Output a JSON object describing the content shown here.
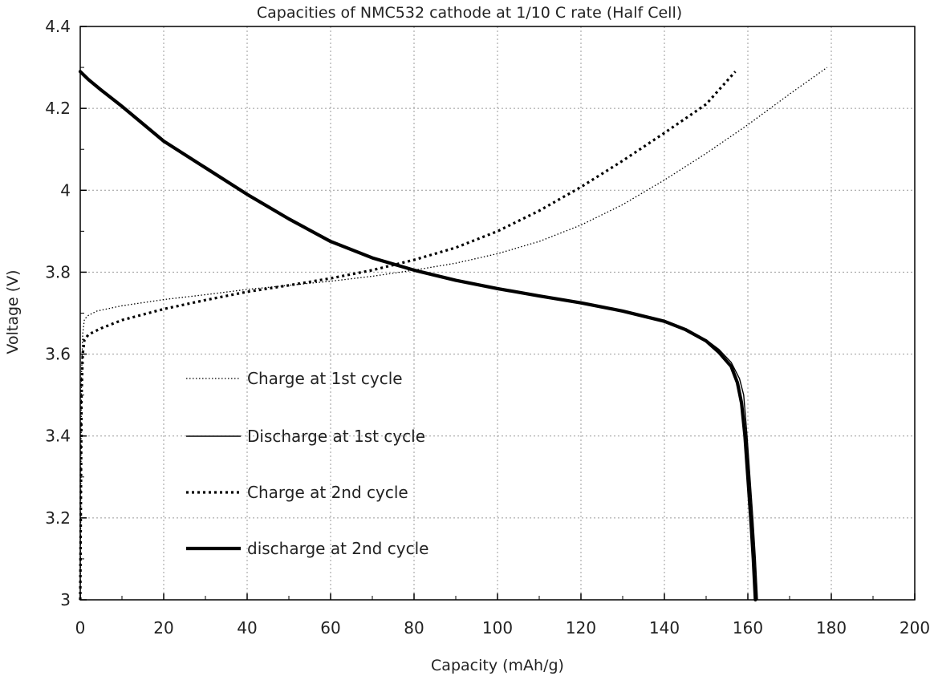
{
  "chart_data": {
    "type": "line",
    "title": "Capacities of NMC532 cathode at 1/10 C rate (Half Cell)",
    "xlabel": "Capacity (mAh/g)",
    "ylabel": "Voltage (V)",
    "xlim": [
      0,
      200
    ],
    "ylim": [
      3,
      4.4
    ],
    "x_ticks": [
      0,
      20,
      40,
      60,
      80,
      100,
      120,
      140,
      160,
      180,
      200
    ],
    "x_tick_labels": [
      "0",
      "20",
      "40",
      "60",
      "80",
      "100",
      "120",
      "140",
      "160",
      "180",
      "200"
    ],
    "y_ticks": [
      3,
      3.2,
      3.4,
      3.6,
      3.8,
      4,
      4.2,
      4.4
    ],
    "y_tick_labels": [
      "3",
      "3.2",
      "3.4",
      "3.6",
      "3.8",
      "4",
      "4.2",
      "4.4"
    ],
    "grid": true,
    "legend_position": "center-left",
    "series": [
      {
        "name": "Charge at 1st cycle",
        "style": "dotted-thin",
        "color": "#000000",
        "x": [
          0,
          0.3,
          0.6,
          1,
          2,
          4,
          10,
          20,
          30,
          40,
          50,
          60,
          70,
          80,
          90,
          100,
          110,
          120,
          130,
          140,
          150,
          160,
          170,
          179
        ],
        "y": [
          3.0,
          3.55,
          3.65,
          3.685,
          3.695,
          3.705,
          3.718,
          3.733,
          3.745,
          3.758,
          3.768,
          3.778,
          3.79,
          3.805,
          3.822,
          3.845,
          3.875,
          3.915,
          3.965,
          4.025,
          4.09,
          4.16,
          4.235,
          4.3
        ]
      },
      {
        "name": "Discharge at 1st cycle",
        "style": "solid-thin",
        "color": "#000000",
        "x": [
          0,
          2,
          5,
          10,
          20,
          30,
          40,
          50,
          60,
          70,
          80,
          90,
          100,
          110,
          120,
          130,
          140,
          145,
          150,
          153,
          156,
          158,
          159,
          159.8,
          160.5,
          161.2,
          161.8,
          162.3
        ],
        "y": [
          4.29,
          4.27,
          4.245,
          4.205,
          4.12,
          4.055,
          3.99,
          3.93,
          3.875,
          3.835,
          3.805,
          3.78,
          3.76,
          3.742,
          3.725,
          3.705,
          3.68,
          3.66,
          3.635,
          3.612,
          3.58,
          3.54,
          3.5,
          3.4,
          3.3,
          3.2,
          3.1,
          3.0
        ]
      },
      {
        "name": "Charge at 2nd cycle",
        "style": "dotted-thick",
        "color": "#000000",
        "x": [
          0,
          0.3,
          0.6,
          1,
          2,
          5,
          10,
          20,
          30,
          40,
          50,
          60,
          70,
          80,
          90,
          100,
          110,
          120,
          130,
          140,
          150,
          157
        ],
        "y": [
          3.0,
          3.5,
          3.6,
          3.635,
          3.648,
          3.663,
          3.683,
          3.71,
          3.732,
          3.752,
          3.768,
          3.785,
          3.805,
          3.83,
          3.86,
          3.9,
          3.95,
          4.008,
          4.072,
          4.14,
          4.21,
          4.29
        ]
      },
      {
        "name": "discharge at 2nd cycle",
        "style": "solid-thick",
        "color": "#000000",
        "x": [
          0,
          2,
          5,
          10,
          20,
          30,
          40,
          50,
          60,
          70,
          80,
          90,
          100,
          110,
          120,
          130,
          140,
          145,
          150,
          153,
          156,
          157.5,
          158.5,
          159.3,
          160,
          160.7,
          161.3,
          161.8
        ],
        "y": [
          4.29,
          4.27,
          4.245,
          4.205,
          4.12,
          4.055,
          3.99,
          3.93,
          3.875,
          3.835,
          3.805,
          3.78,
          3.76,
          3.742,
          3.725,
          3.705,
          3.68,
          3.66,
          3.632,
          3.605,
          3.57,
          3.53,
          3.48,
          3.4,
          3.3,
          3.2,
          3.1,
          3.0
        ]
      }
    ]
  }
}
